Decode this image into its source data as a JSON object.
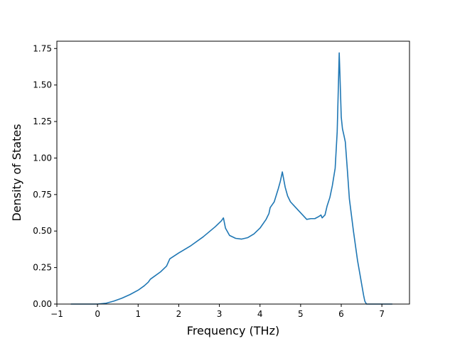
{
  "chart_data": {
    "type": "line",
    "title": "",
    "xlabel": "Frequency (THz)",
    "ylabel": "Density of States",
    "xlim": [
      -1.0,
      7.68
    ],
    "ylim": [
      0.0,
      1.8
    ],
    "xticks": [
      -1,
      0,
      1,
      2,
      3,
      4,
      5,
      6,
      7
    ],
    "xtick_labels": [
      "−1",
      "0",
      "1",
      "2",
      "3",
      "4",
      "5",
      "6",
      "7"
    ],
    "yticks": [
      0.0,
      0.25,
      0.5,
      0.75,
      1.0,
      1.25,
      1.5,
      1.75
    ],
    "ytick_labels": [
      "0.00",
      "0.25",
      "0.50",
      "0.75",
      "1.00",
      "1.25",
      "1.50",
      "1.75"
    ],
    "grid": false,
    "legend": "none",
    "series": [
      {
        "color": "#1f77b4",
        "x": [
          -0.65,
          0.0,
          0.2,
          0.4,
          0.6,
          0.8,
          1.0,
          1.15,
          1.25,
          1.3,
          1.4,
          1.55,
          1.7,
          1.78,
          2.0,
          2.3,
          2.6,
          2.9,
          3.05,
          3.1,
          3.15,
          3.25,
          3.4,
          3.55,
          3.7,
          3.85,
          4.0,
          4.15,
          4.22,
          4.25,
          4.3,
          4.35,
          4.4,
          4.45,
          4.5,
          4.55,
          4.58,
          4.62,
          4.68,
          4.75,
          4.85,
          5.0,
          5.1,
          5.15,
          5.25,
          5.35,
          5.45,
          5.5,
          5.53,
          5.6,
          5.65,
          5.72,
          5.78,
          5.85,
          5.9,
          5.93,
          5.95,
          5.97,
          6.0,
          6.03,
          6.07,
          6.1,
          6.15,
          6.2,
          6.3,
          6.4,
          6.5,
          6.55,
          6.58,
          6.62,
          6.65,
          7.25
        ],
        "values": [
          0.0,
          0.0,
          0.005,
          0.02,
          0.04,
          0.065,
          0.095,
          0.125,
          0.15,
          0.17,
          0.19,
          0.22,
          0.26,
          0.31,
          0.35,
          0.4,
          0.46,
          0.53,
          0.57,
          0.59,
          0.52,
          0.47,
          0.45,
          0.445,
          0.455,
          0.48,
          0.52,
          0.58,
          0.62,
          0.66,
          0.68,
          0.7,
          0.745,
          0.79,
          0.84,
          0.905,
          0.86,
          0.8,
          0.74,
          0.7,
          0.67,
          0.625,
          0.595,
          0.58,
          0.585,
          0.585,
          0.6,
          0.61,
          0.59,
          0.61,
          0.67,
          0.73,
          0.81,
          0.93,
          1.18,
          1.5,
          1.72,
          1.55,
          1.28,
          1.2,
          1.15,
          1.11,
          0.92,
          0.72,
          0.5,
          0.3,
          0.14,
          0.06,
          0.02,
          0.0,
          0.0,
          0.0
        ]
      }
    ]
  }
}
